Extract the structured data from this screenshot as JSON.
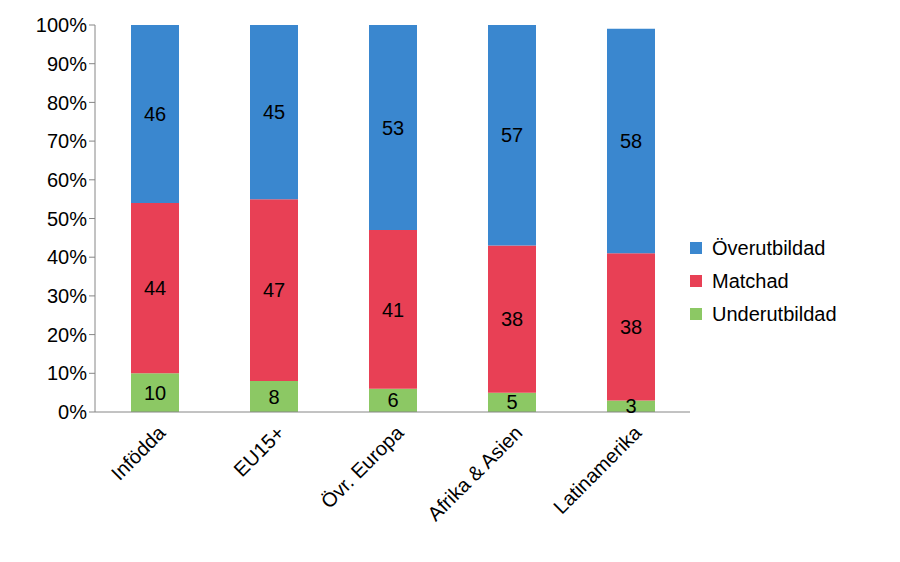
{
  "chart_data": {
    "type": "bar",
    "stacked": true,
    "data_labels": true,
    "grid": false,
    "legend": "right",
    "categories": [
      "Infödda",
      "EU15+",
      "Övr. Europa",
      "Afrika & Asien",
      "Latinamerika"
    ],
    "series": [
      {
        "name": "Underutbildad",
        "color": "#8cc864",
        "values": [
          10,
          8,
          6,
          5,
          3
        ]
      },
      {
        "name": "Matchad",
        "color": "#e84055",
        "values": [
          44,
          47,
          41,
          38,
          38
        ]
      },
      {
        "name": "Överutbildad",
        "color": "#3a87cf",
        "values": [
          46,
          45,
          53,
          57,
          58
        ]
      }
    ],
    "ylim": [
      0,
      100
    ],
    "yticks": [
      {
        "value": 0,
        "label": "0%"
      },
      {
        "value": 10,
        "label": "10%"
      },
      {
        "value": 20,
        "label": "20%"
      },
      {
        "value": 30,
        "label": "30%"
      },
      {
        "value": 40,
        "label": "40%"
      },
      {
        "value": 50,
        "label": "50%"
      },
      {
        "value": 60,
        "label": "60%"
      },
      {
        "value": 70,
        "label": "70%"
      },
      {
        "value": 80,
        "label": "80%"
      },
      {
        "value": 90,
        "label": "90%"
      },
      {
        "value": 100,
        "label": "100%"
      }
    ]
  }
}
